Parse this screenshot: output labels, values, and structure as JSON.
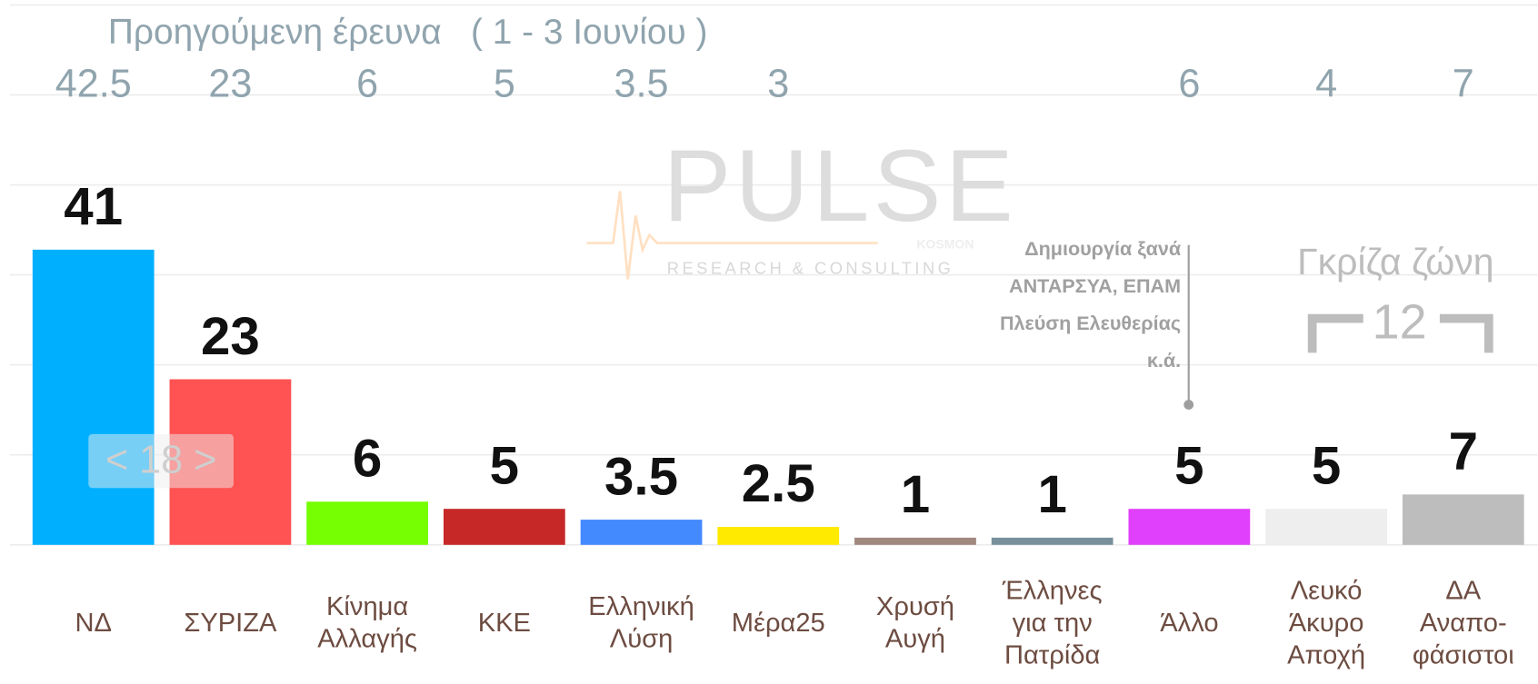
{
  "chart_data": {
    "type": "bar",
    "categories": [
      [
        "ΝΔ"
      ],
      [
        "ΣΥΡΙΖΑ"
      ],
      [
        "Κίνημα",
        "Αλλαγής"
      ],
      [
        "ΚΚΕ"
      ],
      [
        "Ελληνική",
        "Λύση"
      ],
      [
        "Μέρα25"
      ],
      [
        "Χρυσή",
        "Αυγή"
      ],
      [
        "Έλληνες",
        "για την",
        "Πατρίδα"
      ],
      [
        "Άλλο"
      ],
      [
        "Λευκό",
        "Άκυρο",
        "Αποχή"
      ],
      [
        "ΔΑ",
        "Αναπο-",
        "φάσιστοι"
      ]
    ],
    "values": [
      41,
      23,
      6,
      5,
      3.5,
      2.5,
      1,
      1,
      5,
      5,
      7
    ],
    "colors": [
      "#00b0ff",
      "#ff5252",
      "#76ff03",
      "#c62828",
      "#448aff",
      "#ffea00",
      "#a1887f",
      "#78909c",
      "#e040fb",
      "#eeeeee",
      "#bdbdbd"
    ],
    "previous": {
      "title": "Προηγούμενη έρευνα",
      "subtitle": "( 1 - 3 Ιουνίου )",
      "values": [
        42.5,
        23,
        6,
        5,
        3.5,
        3,
        null,
        null,
        6,
        4,
        7
      ]
    },
    "ylim": [
      0,
      75
    ],
    "yticks": [
      0,
      12.5,
      25,
      37.5,
      50,
      62.5,
      75
    ],
    "grid": true,
    "annotations": {
      "gap": "< 18 >",
      "other_note": [
        "Δημιουργία ξανά",
        "ΑΝΤΑΡΣΥΑ, ΕΠΑΜ",
        "Πλεύση Ελευθερίας",
        "κ.ά."
      ],
      "grey_zone": "Γκρίζα ζώνη",
      "grey_zone_value": "12"
    },
    "logo": {
      "name": "PULSE",
      "tagline": "RESEARCH & CONSULTING",
      "partner": "KOSMON"
    }
  }
}
